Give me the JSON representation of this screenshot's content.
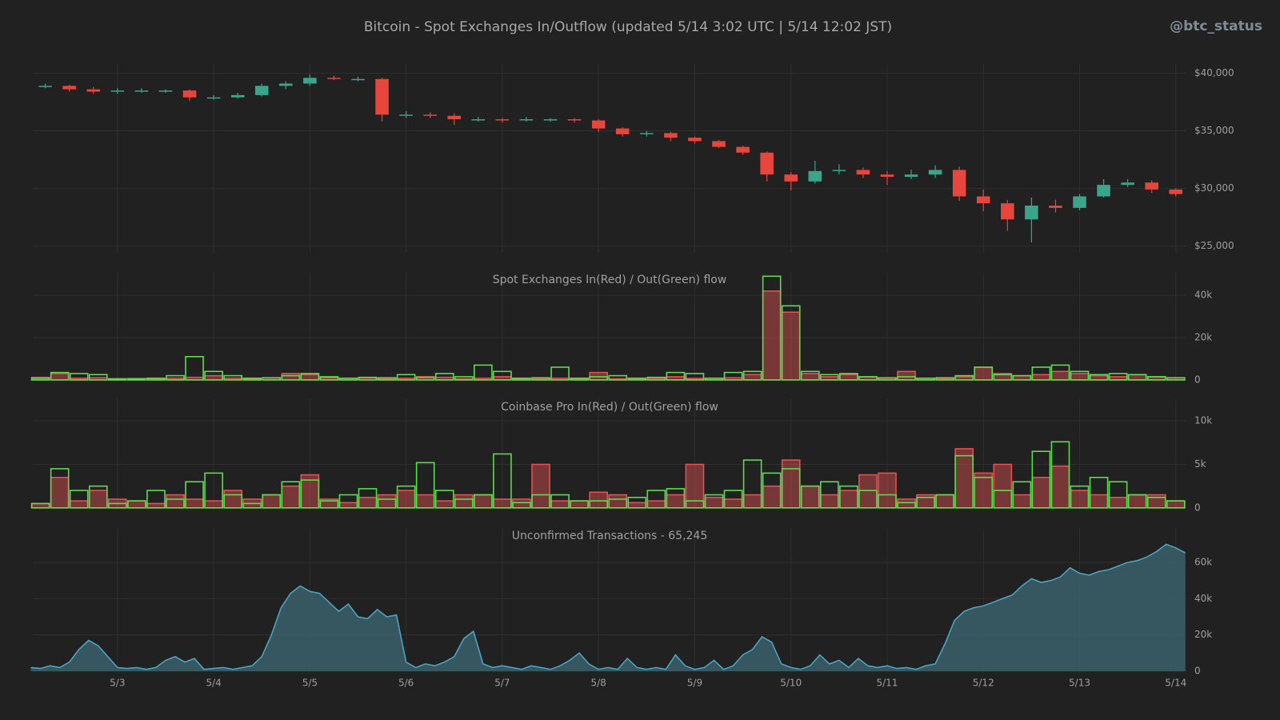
{
  "header": {
    "title": "Bitcoin - Spot Exchanges In/Outflow    (updated 5/14 3:02 UTC  |  5/14 12:02 JST)",
    "handle": "@btc_status"
  },
  "chart_data": [
    {
      "type": "candlestick",
      "up_color": "#3aa58a",
      "down_color": "#e8453c",
      "x": [
        2.25,
        2.5,
        2.75,
        3,
        3.25,
        3.5,
        3.75,
        4,
        4.25,
        4.5,
        4.75,
        5,
        5.25,
        5.5,
        5.75,
        6,
        6.25,
        6.5,
        6.75,
        7,
        7.25,
        7.5,
        7.75,
        8,
        8.25,
        8.5,
        8.75,
        9,
        9.25,
        9.5,
        9.75,
        10,
        10.25,
        10.5,
        10.75,
        11,
        11.25,
        11.5,
        11.75,
        12,
        12.25,
        12.5,
        12.75,
        13,
        13.25,
        13.5,
        13.75,
        14
      ],
      "open": [
        38800,
        38900,
        38600,
        38400,
        38500,
        38500,
        38500,
        37900,
        37900,
        38100,
        38900,
        39100,
        39600,
        39500,
        39500,
        36400,
        36400,
        36300,
        36000,
        36000,
        35900,
        36000,
        36000,
        35900,
        35200,
        34700,
        34800,
        34400,
        34100,
        33600,
        33100,
        31200,
        30600,
        31500,
        31600,
        31200,
        31000,
        31200,
        31600,
        29300,
        28700,
        27300,
        28500,
        28300,
        29300,
        30300,
        30500,
        29900
      ],
      "high": [
        39100,
        39000,
        38800,
        38700,
        38700,
        38600,
        38600,
        38100,
        38300,
        39100,
        39300,
        39900,
        39800,
        39700,
        39600,
        36700,
        36600,
        36500,
        36200,
        36100,
        36200,
        36100,
        36100,
        36000,
        35300,
        35000,
        34900,
        34500,
        34200,
        33700,
        33200,
        31400,
        32400,
        32100,
        31800,
        31500,
        31600,
        32000,
        31900,
        29900,
        29000,
        29200,
        29000,
        29500,
        30800,
        30800,
        30700,
        30000
      ],
      "low": [
        38700,
        38400,
        38200,
        38200,
        38300,
        38300,
        37600,
        37700,
        37800,
        38000,
        38600,
        38900,
        39400,
        39300,
        35800,
        36100,
        36100,
        35500,
        35800,
        35700,
        35800,
        35800,
        35700,
        34900,
        34500,
        34500,
        34100,
        33900,
        33500,
        32900,
        30600,
        29800,
        30400,
        31200,
        30900,
        30300,
        30800,
        30900,
        28900,
        28000,
        26300,
        25300,
        27900,
        28100,
        29200,
        30100,
        29600,
        29300
      ],
      "close": [
        38900,
        38600,
        38400,
        38500,
        38500,
        38500,
        37900,
        37900,
        38100,
        38900,
        39100,
        39600,
        39500,
        39500,
        36400,
        36400,
        36300,
        36000,
        36000,
        35900,
        36000,
        36000,
        35900,
        35200,
        34700,
        34800,
        34400,
        34100,
        33600,
        33100,
        31200,
        30600,
        31500,
        31600,
        31200,
        31000,
        31200,
        31600,
        29300,
        28700,
        27300,
        28500,
        28300,
        29300,
        30300,
        30500,
        29900,
        29500
      ],
      "xlim": [
        2.12,
        14.11
      ],
      "ylim": [
        24400,
        40800
      ],
      "yticks": [
        {
          "value": 25000,
          "label": "$25,000"
        },
        {
          "value": 30000,
          "label": "$30,000"
        },
        {
          "value": 35000,
          "label": "$35,000"
        },
        {
          "value": 40000,
          "label": "$40,000"
        }
      ],
      "grid": true
    },
    {
      "type": "histogram",
      "title": "Spot Exchanges  In(Red) / Out(Green) flow",
      "bins": [
        2.1,
        2.3,
        2.5,
        2.7,
        2.9,
        3.1,
        3.3,
        3.5,
        3.7,
        3.9,
        4.1,
        4.3,
        4.5,
        4.7,
        4.9,
        5.1,
        5.3,
        5.5,
        5.7,
        5.9,
        6.1,
        6.3,
        6.5,
        6.7,
        6.9,
        7.1,
        7.3,
        7.5,
        7.7,
        7.9,
        8.1,
        8.3,
        8.5,
        8.7,
        8.9,
        9.1,
        9.3,
        9.5,
        9.7,
        9.9,
        10.1,
        10.3,
        10.5,
        10.7,
        10.9,
        11.1,
        11.3,
        11.5,
        11.7,
        11.9,
        12.1,
        12.3,
        12.5,
        12.7,
        12.9,
        13.1,
        13.3,
        13.5,
        13.7,
        13.9,
        14.1
      ],
      "series": [
        {
          "color": "#e05252",
          "values": [
            1200,
            3000,
            800,
            1000,
            500,
            500,
            400,
            800,
            1200,
            2000,
            800,
            600,
            1000,
            3000,
            2500,
            1000,
            800,
            1000,
            500,
            800,
            1500,
            1200,
            500,
            800,
            1500,
            600,
            500,
            800,
            500,
            3500,
            500,
            600,
            800,
            1500,
            700,
            800,
            1000,
            2500,
            42000,
            32000,
            3000,
            1500,
            2500,
            1500,
            800,
            4000,
            800,
            600,
            1500,
            6000,
            3000,
            2000,
            2500,
            4000,
            3000,
            2000,
            1500,
            2500,
            1500,
            1000
          ]
        },
        {
          "color": "#5ddb4c",
          "values": [
            800,
            3500,
            3000,
            2500,
            500,
            600,
            800,
            2000,
            11000,
            4000,
            2000,
            800,
            1000,
            2000,
            3000,
            1500,
            800,
            1200,
            1000,
            2500,
            1200,
            3000,
            1500,
            7000,
            4000,
            800,
            1000,
            6000,
            800,
            1500,
            2000,
            800,
            1200,
            3500,
            3000,
            800,
            3500,
            4000,
            49000,
            35000,
            4000,
            2500,
            3000,
            1500,
            1000,
            1500,
            800,
            1000,
            2000,
            6000,
            2500,
            2000,
            6000,
            7000,
            4000,
            2500,
            3000,
            2500,
            1500,
            1000
          ]
        }
      ],
      "xlim": [
        2.12,
        14.11
      ],
      "ylim": [
        -800,
        51000
      ],
      "yticks": [
        0,
        {
          "value": 20000,
          "label": "20k"
        },
        {
          "value": 40000,
          "label": "40k"
        }
      ],
      "grid": true
    },
    {
      "type": "histogram",
      "title": "Coinbase Pro  In(Red) / Out(Green) flow",
      "bins": [
        2.1,
        2.3,
        2.5,
        2.7,
        2.9,
        3.1,
        3.3,
        3.5,
        3.7,
        3.9,
        4.1,
        4.3,
        4.5,
        4.7,
        4.9,
        5.1,
        5.3,
        5.5,
        5.7,
        5.9,
        6.1,
        6.3,
        6.5,
        6.7,
        6.9,
        7.1,
        7.3,
        7.5,
        7.7,
        7.9,
        8.1,
        8.3,
        8.5,
        8.7,
        8.9,
        9.1,
        9.3,
        9.5,
        9.7,
        9.9,
        10.1,
        10.3,
        10.5,
        10.7,
        10.9,
        11.1,
        11.3,
        11.5,
        11.7,
        11.9,
        12.1,
        12.3,
        12.5,
        12.7,
        12.9,
        13.1,
        13.3,
        13.5,
        13.7,
        13.9,
        14.1
      ],
      "series": [
        {
          "color": "#e05252",
          "values": [
            500,
            3500,
            800,
            2000,
            1000,
            800,
            500,
            1500,
            1000,
            800,
            2000,
            1000,
            1500,
            2500,
            3800,
            1000,
            600,
            1200,
            1500,
            2000,
            1500,
            800,
            1500,
            1500,
            1000,
            1000,
            5000,
            800,
            800,
            1800,
            1500,
            600,
            800,
            1500,
            5000,
            1200,
            1000,
            1500,
            2500,
            5500,
            2500,
            1500,
            2000,
            3800,
            4000,
            1000,
            1500,
            1500,
            6800,
            4000,
            5000,
            1500,
            3500,
            4800,
            2000,
            1500,
            1200,
            1500,
            1500,
            800
          ]
        },
        {
          "color": "#5ddb4c",
          "values": [
            500,
            4500,
            2000,
            2500,
            500,
            800,
            2000,
            1000,
            3000,
            4000,
            1500,
            500,
            1500,
            3000,
            3200,
            800,
            1500,
            2200,
            1000,
            2500,
            5200,
            2000,
            1000,
            1500,
            6200,
            600,
            1500,
            1500,
            800,
            800,
            1000,
            1200,
            2000,
            2200,
            800,
            1500,
            2000,
            5500,
            4000,
            4500,
            2500,
            3000,
            2500,
            2000,
            1500,
            600,
            1200,
            1500,
            6000,
            3500,
            2000,
            3000,
            6500,
            7600,
            2500,
            3500,
            3000,
            1500,
            1200,
            800
          ]
        }
      ],
      "xlim": [
        2.12,
        14.11
      ],
      "ylim": [
        -200,
        12500
      ],
      "yticks": [
        0,
        {
          "value": 5000,
          "label": "5k"
        },
        {
          "value": 10000,
          "label": "10k"
        }
      ],
      "grid": true
    },
    {
      "type": "area",
      "title": "Unconfirmed Transactions  -  65,245",
      "color": "#4ba3c3",
      "fill": "#3a5f6b",
      "x": [
        2.1,
        2.2,
        2.3,
        2.4,
        2.5,
        2.6,
        2.7,
        2.8,
        2.9,
        3.0,
        3.1,
        3.2,
        3.3,
        3.4,
        3.5,
        3.6,
        3.7,
        3.8,
        3.9,
        4.0,
        4.1,
        4.2,
        4.3,
        4.4,
        4.5,
        4.6,
        4.7,
        4.8,
        4.9,
        5.0,
        5.1,
        5.2,
        5.3,
        5.4,
        5.5,
        5.6,
        5.7,
        5.8,
        5.9,
        6.0,
        6.1,
        6.2,
        6.3,
        6.4,
        6.5,
        6.6,
        6.7,
        6.8,
        6.9,
        7.0,
        7.1,
        7.2,
        7.3,
        7.4,
        7.5,
        7.6,
        7.7,
        7.8,
        7.9,
        8.0,
        8.1,
        8.2,
        8.3,
        8.4,
        8.5,
        8.6,
        8.7,
        8.8,
        8.9,
        9.0,
        9.1,
        9.2,
        9.3,
        9.4,
        9.5,
        9.6,
        9.7,
        9.8,
        9.9,
        10.0,
        10.1,
        10.2,
        10.3,
        10.4,
        10.5,
        10.6,
        10.7,
        10.8,
        10.9,
        11.0,
        11.1,
        11.2,
        11.3,
        11.4,
        11.5,
        11.6,
        11.7,
        11.8,
        11.9,
        12.0,
        12.1,
        12.2,
        12.3,
        12.4,
        12.5,
        12.6,
        12.7,
        12.8,
        12.9,
        13.0,
        13.1,
        13.2,
        13.3,
        13.4,
        13.5,
        13.6,
        13.7,
        13.8,
        13.9,
        14.0,
        14.1
      ],
      "values": [
        2000,
        1500,
        3000,
        2000,
        5000,
        12000,
        17000,
        14000,
        8000,
        2000,
        1500,
        2000,
        1000,
        2000,
        6000,
        8000,
        5000,
        7000,
        1000,
        1500,
        2000,
        1000,
        2000,
        3000,
        8000,
        20000,
        35000,
        43000,
        47000,
        44000,
        43000,
        38000,
        33000,
        37000,
        30000,
        29000,
        34000,
        30000,
        31000,
        5000,
        2000,
        4000,
        3000,
        5000,
        8000,
        18000,
        22000,
        4000,
        2000,
        3000,
        2000,
        1000,
        3000,
        2000,
        1000,
        3000,
        6000,
        10000,
        4000,
        1000,
        2000,
        1000,
        7000,
        2000,
        1000,
        2000,
        1000,
        9000,
        3000,
        1000,
        2000,
        6000,
        1000,
        3000,
        9000,
        12000,
        19000,
        16000,
        4000,
        2000,
        1000,
        3000,
        9000,
        4000,
        6000,
        2000,
        7000,
        3000,
        2000,
        3000,
        1500,
        2000,
        1000,
        3000,
        4000,
        15000,
        28000,
        33000,
        35000,
        36000,
        38000,
        40000,
        42000,
        47000,
        51000,
        49000,
        50000,
        52000,
        57000,
        54000,
        53000,
        55000,
        56000,
        58000,
        60000,
        61000,
        63000,
        66000,
        70000,
        68000,
        65245
      ],
      "xlim": [
        2.12,
        14.11
      ],
      "ylim": [
        -900,
        79000
      ],
      "xticks": [
        {
          "value": 3,
          "label": "5/3"
        },
        {
          "value": 4,
          "label": "5/4"
        },
        {
          "value": 5,
          "label": "5/5"
        },
        {
          "value": 6,
          "label": "5/6"
        },
        {
          "value": 7,
          "label": "5/7"
        },
        {
          "value": 8,
          "label": "5/8"
        },
        {
          "value": 9,
          "label": "5/9"
        },
        {
          "value": 10,
          "label": "5/10"
        },
        {
          "value": 11,
          "label": "5/11"
        },
        {
          "value": 12,
          "label": "5/12"
        },
        {
          "value": 13,
          "label": "5/13"
        },
        {
          "value": 14,
          "label": "5/14"
        }
      ],
      "yticks": [
        0,
        {
          "value": 20000,
          "label": "20k"
        },
        {
          "value": 40000,
          "label": "40k"
        },
        {
          "value": 60000,
          "label": "60k"
        }
      ],
      "grid": true
    }
  ]
}
